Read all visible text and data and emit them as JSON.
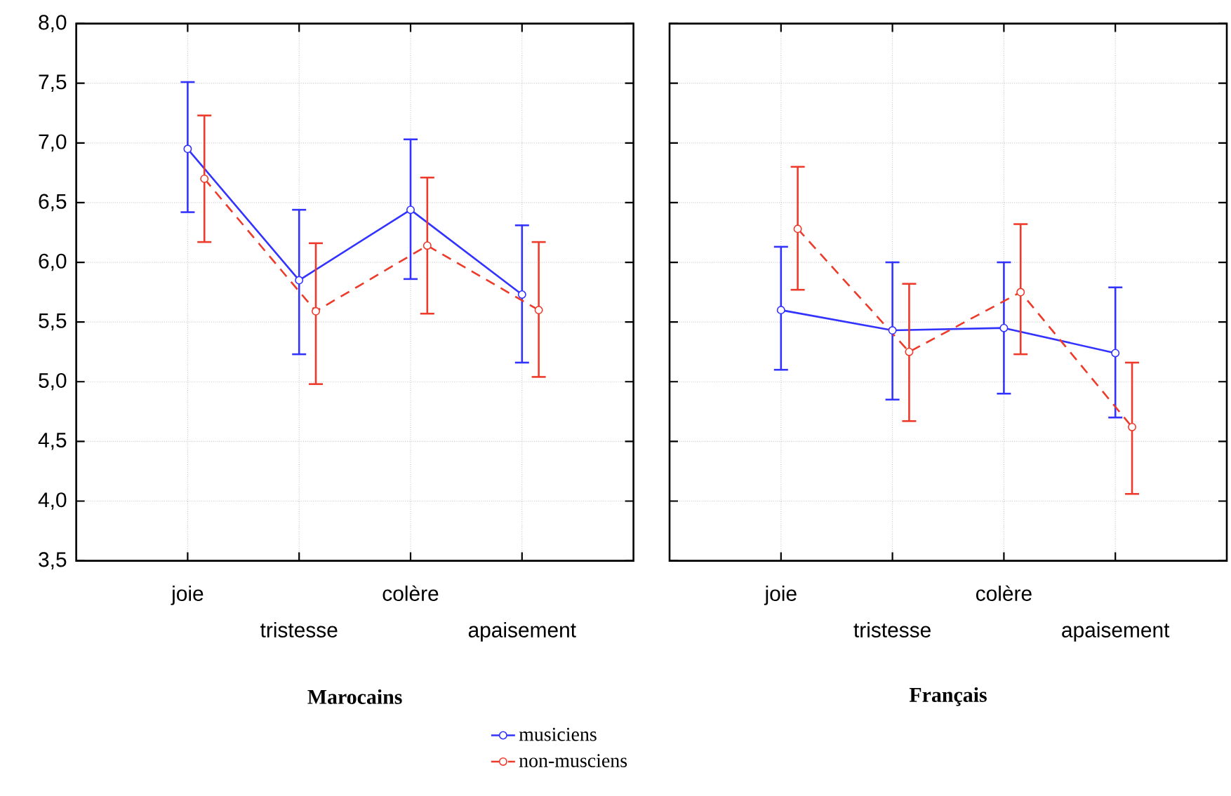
{
  "chart_data": [
    {
      "type": "line",
      "xlabel": "Marocains",
      "categories": [
        "joie",
        "tristesse",
        "colère",
        "apaisement"
      ],
      "ylim": [
        3.5,
        8.0
      ],
      "yticks": [
        {
          "value": 3.5,
          "label": "3,5"
        },
        {
          "value": 4.0,
          "label": "4,0"
        },
        {
          "value": 4.5,
          "label": "4,5"
        },
        {
          "value": 5.0,
          "label": "5,0"
        },
        {
          "value": 5.5,
          "label": "5,5"
        },
        {
          "value": 6.0,
          "label": "6,0"
        },
        {
          "value": 6.5,
          "label": "6,5"
        },
        {
          "value": 7.0,
          "label": "7,0"
        },
        {
          "value": 7.5,
          "label": "7,5"
        },
        {
          "value": 8.0,
          "label": "8,0"
        }
      ],
      "grid": true,
      "marker": "circle",
      "legend": "bottom",
      "series": [
        {
          "name": "musiciens",
          "color": "#3333ff",
          "line_style": "solid",
          "values": [
            6.95,
            5.85,
            6.44,
            5.73
          ],
          "errors": [
            [
              6.42,
              7.51
            ],
            [
              5.23,
              6.44
            ],
            [
              5.86,
              7.03
            ],
            [
              5.16,
              6.31
            ]
          ]
        },
        {
          "name": "non-musciens",
          "color": "#ee3a2a",
          "line_style": "dashed",
          "values": [
            6.7,
            5.59,
            6.14,
            5.6
          ],
          "errors": [
            [
              6.17,
              7.23
            ],
            [
              4.98,
              6.16
            ],
            [
              5.57,
              6.71
            ],
            [
              5.04,
              6.17
            ]
          ]
        }
      ]
    },
    {
      "type": "line",
      "xlabel": "Français",
      "categories": [
        "joie",
        "tristesse",
        "colère",
        "apaisement"
      ],
      "ylim": [
        3.5,
        8.0
      ],
      "yticks": [
        3.5,
        4.0,
        4.5,
        5.0,
        5.5,
        6.0,
        6.5,
        7.0,
        7.5,
        8.0
      ],
      "tick_labels": "x",
      "grid": true,
      "marker": "circle",
      "series": [
        {
          "color": "#3333ff",
          "line_style": "solid",
          "values": [
            5.6,
            5.43,
            5.45,
            5.24
          ],
          "errors": [
            [
              5.1,
              6.13
            ],
            [
              4.85,
              6.0
            ],
            [
              4.9,
              6.0
            ],
            [
              4.7,
              5.79
            ]
          ]
        },
        {
          "color": "#ee3a2a",
          "line_style": "dashed",
          "values": [
            6.28,
            5.25,
            5.75,
            4.62
          ],
          "errors": [
            [
              5.77,
              6.8
            ],
            [
              4.67,
              5.82
            ],
            [
              5.23,
              6.32
            ],
            [
              4.06,
              5.16
            ]
          ]
        }
      ]
    }
  ]
}
